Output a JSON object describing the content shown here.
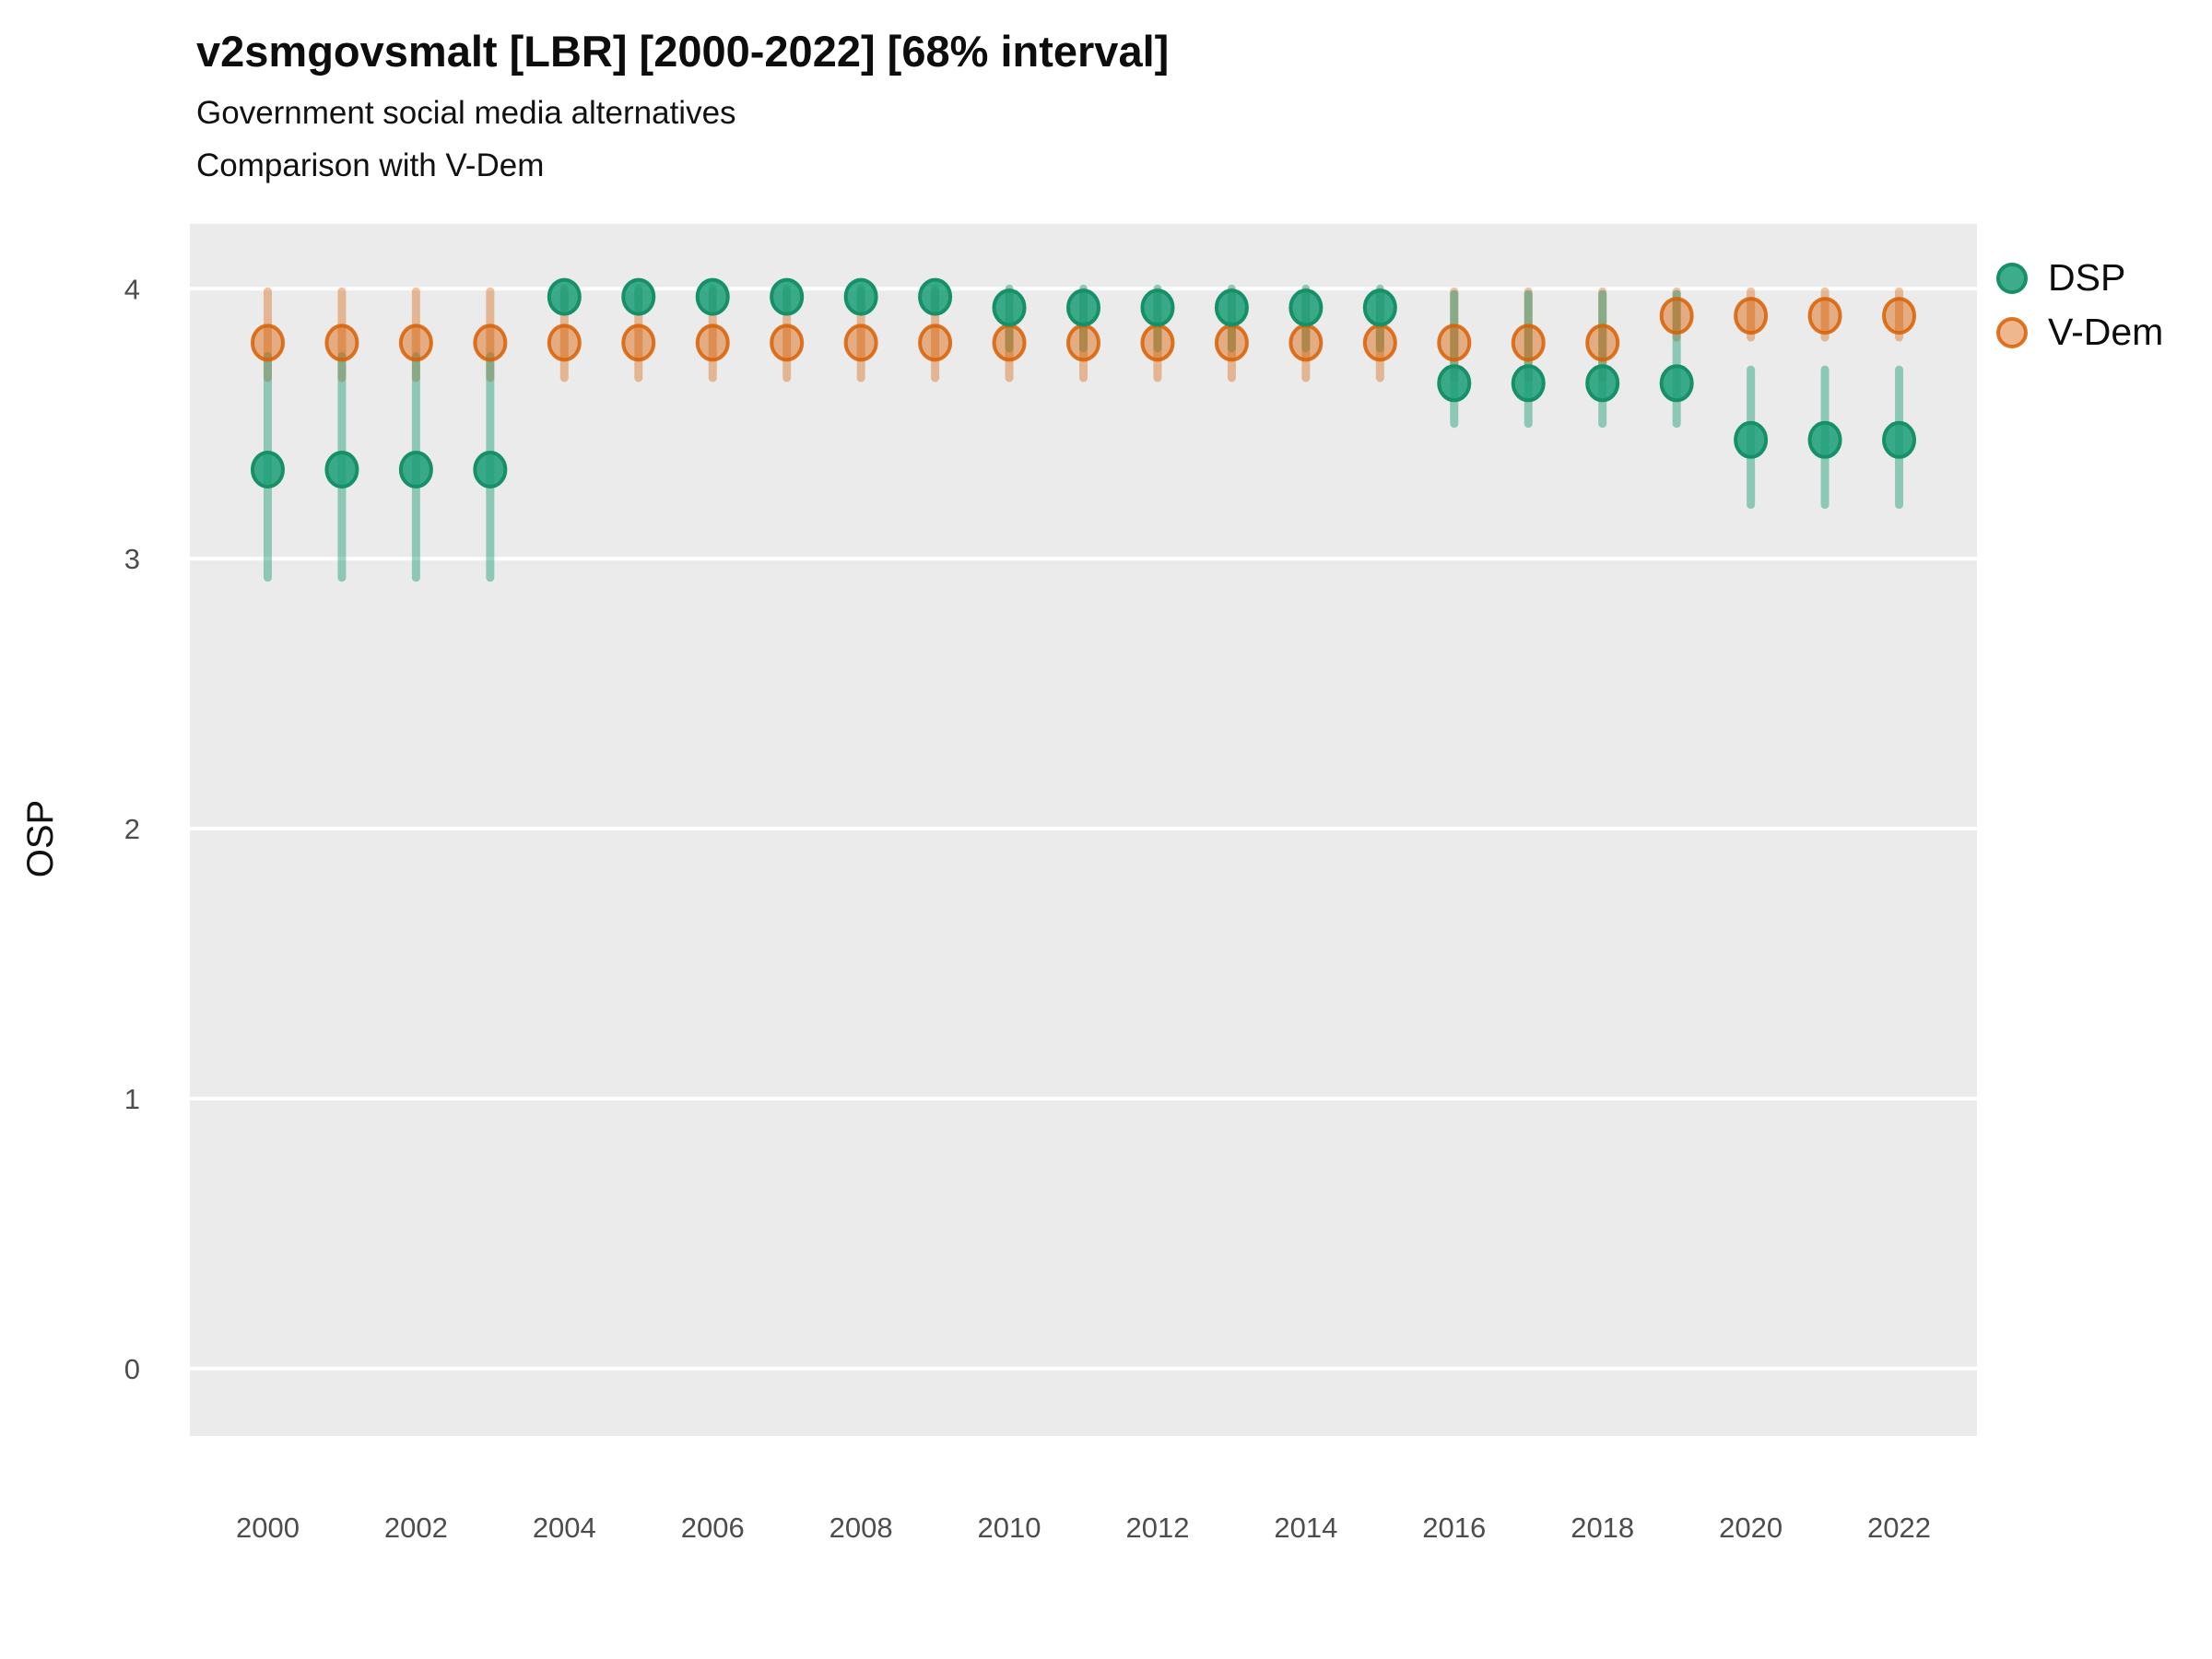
{
  "chart_data": {
    "type": "pointrange-scatter",
    "title": "v2smgovsmalt [LBR] [2000-2022] [68% interval]",
    "subtitle1": "Government social media alternatives",
    "subtitle2": "Comparison with V-Dem",
    "xlabel": "",
    "ylabel": "OSP",
    "interval_note": "68% interval",
    "xlim": [
      1998.95,
      2023.05
    ],
    "ylim": [
      -0.25,
      4.24
    ],
    "x_ticks": [
      2000,
      2002,
      2004,
      2006,
      2008,
      2010,
      2012,
      2014,
      2016,
      2018,
      2020,
      2022
    ],
    "y_ticks": [
      0,
      1,
      2,
      3,
      4
    ],
    "grid": "major-horizontal-only",
    "legend_position": "top-right",
    "panel_color": "#EBEBEB",
    "gridline_color": "#FFFFFF",
    "tick_label_color": "#4D4D4D",
    "series": [
      {
        "name": "DSP",
        "color": "#1B9E77",
        "bar_color": "rgba(27,158,119,0.45)",
        "fill_color": "rgba(27,158,119,0.85)",
        "stroke_color": "#169067",
        "points": [
          {
            "year": 2000,
            "value": 3.33,
            "lo": 2.93,
            "hi": 3.75
          },
          {
            "year": 2001,
            "value": 3.33,
            "lo": 2.93,
            "hi": 3.75
          },
          {
            "year": 2002,
            "value": 3.33,
            "lo": 2.93,
            "hi": 3.75
          },
          {
            "year": 2003,
            "value": 3.33,
            "lo": 2.93,
            "hi": 3.75
          },
          {
            "year": 2004,
            "value": 3.97,
            "lo": 3.93,
            "hi": 4.0
          },
          {
            "year": 2005,
            "value": 3.97,
            "lo": 3.93,
            "hi": 4.0
          },
          {
            "year": 2006,
            "value": 3.97,
            "lo": 3.93,
            "hi": 4.0
          },
          {
            "year": 2007,
            "value": 3.97,
            "lo": 3.93,
            "hi": 4.0
          },
          {
            "year": 2008,
            "value": 3.97,
            "lo": 3.93,
            "hi": 4.0
          },
          {
            "year": 2009,
            "value": 3.97,
            "lo": 3.93,
            "hi": 4.0
          },
          {
            "year": 2010,
            "value": 3.93,
            "lo": 3.78,
            "hi": 4.0
          },
          {
            "year": 2011,
            "value": 3.93,
            "lo": 3.78,
            "hi": 4.0
          },
          {
            "year": 2012,
            "value": 3.93,
            "lo": 3.78,
            "hi": 4.0
          },
          {
            "year": 2013,
            "value": 3.93,
            "lo": 3.78,
            "hi": 4.0
          },
          {
            "year": 2014,
            "value": 3.93,
            "lo": 3.78,
            "hi": 4.0
          },
          {
            "year": 2015,
            "value": 3.93,
            "lo": 3.78,
            "hi": 4.0
          },
          {
            "year": 2016,
            "value": 3.65,
            "lo": 3.5,
            "hi": 3.98
          },
          {
            "year": 2017,
            "value": 3.65,
            "lo": 3.5,
            "hi": 3.98
          },
          {
            "year": 2018,
            "value": 3.65,
            "lo": 3.5,
            "hi": 3.98
          },
          {
            "year": 2019,
            "value": 3.65,
            "lo": 3.5,
            "hi": 3.98
          },
          {
            "year": 2020,
            "value": 3.44,
            "lo": 3.2,
            "hi": 3.7
          },
          {
            "year": 2021,
            "value": 3.44,
            "lo": 3.2,
            "hi": 3.7
          },
          {
            "year": 2022,
            "value": 3.44,
            "lo": 3.2,
            "hi": 3.7
          }
        ]
      },
      {
        "name": "V-Dem",
        "color": "#D95F02",
        "bar_color": "rgba(217,95,2,0.38)",
        "fill_color": "rgba(217,95,2,0.45)",
        "stroke_color": "rgba(217,95,2,0.85)",
        "points": [
          {
            "year": 2000,
            "value": 3.8,
            "lo": 3.67,
            "hi": 3.99
          },
          {
            "year": 2001,
            "value": 3.8,
            "lo": 3.67,
            "hi": 3.99
          },
          {
            "year": 2002,
            "value": 3.8,
            "lo": 3.67,
            "hi": 3.99
          },
          {
            "year": 2003,
            "value": 3.8,
            "lo": 3.67,
            "hi": 3.99
          },
          {
            "year": 2004,
            "value": 3.8,
            "lo": 3.67,
            "hi": 3.99
          },
          {
            "year": 2005,
            "value": 3.8,
            "lo": 3.67,
            "hi": 3.99
          },
          {
            "year": 2006,
            "value": 3.8,
            "lo": 3.67,
            "hi": 3.99
          },
          {
            "year": 2007,
            "value": 3.8,
            "lo": 3.67,
            "hi": 3.99
          },
          {
            "year": 2008,
            "value": 3.8,
            "lo": 3.67,
            "hi": 3.99
          },
          {
            "year": 2009,
            "value": 3.8,
            "lo": 3.67,
            "hi": 3.99
          },
          {
            "year": 2010,
            "value": 3.8,
            "lo": 3.67,
            "hi": 3.99
          },
          {
            "year": 2011,
            "value": 3.8,
            "lo": 3.67,
            "hi": 3.99
          },
          {
            "year": 2012,
            "value": 3.8,
            "lo": 3.67,
            "hi": 3.99
          },
          {
            "year": 2013,
            "value": 3.8,
            "lo": 3.67,
            "hi": 3.99
          },
          {
            "year": 2014,
            "value": 3.8,
            "lo": 3.67,
            "hi": 3.99
          },
          {
            "year": 2015,
            "value": 3.8,
            "lo": 3.67,
            "hi": 3.99
          },
          {
            "year": 2016,
            "value": 3.8,
            "lo": 3.67,
            "hi": 3.99
          },
          {
            "year": 2017,
            "value": 3.8,
            "lo": 3.67,
            "hi": 3.99
          },
          {
            "year": 2018,
            "value": 3.8,
            "lo": 3.67,
            "hi": 3.99
          },
          {
            "year": 2019,
            "value": 3.9,
            "lo": 3.82,
            "hi": 3.99
          },
          {
            "year": 2020,
            "value": 3.9,
            "lo": 3.82,
            "hi": 3.99
          },
          {
            "year": 2021,
            "value": 3.9,
            "lo": 3.82,
            "hi": 3.99
          },
          {
            "year": 2022,
            "value": 3.9,
            "lo": 3.82,
            "hi": 3.99
          }
        ]
      }
    ],
    "legend": [
      {
        "label": "DSP"
      },
      {
        "label": "V-Dem"
      }
    ]
  }
}
